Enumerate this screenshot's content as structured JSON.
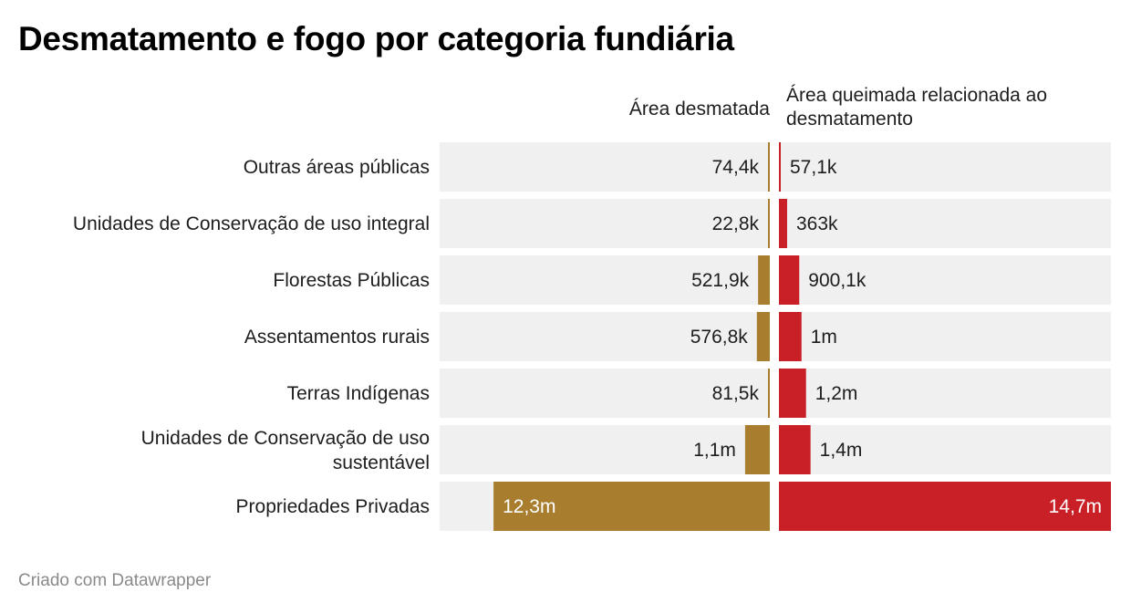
{
  "title": "Desmatamento e fogo por categoria fundiária",
  "footer": "Criado com Datawrapper",
  "colors": {
    "deforestation": "#a87e2e",
    "fire": "#c91f26",
    "row_background": "#f0f0f0",
    "text": "#1d1d1d"
  },
  "chart_data": {
    "type": "bar",
    "orientation": "horizontal",
    "layout": "split-bars",
    "categories": [
      [
        "Outras áreas públicas"
      ],
      [
        "Unidades de Conservação de uso integral"
      ],
      [
        "Florestas Públicas"
      ],
      [
        "Assentamentos rurais"
      ],
      [
        "Terras Indígenas"
      ],
      [
        "Unidades de Conservação de uso",
        "sustentável"
      ],
      [
        "Propriedades Privadas"
      ]
    ],
    "series": [
      {
        "name": "Área desmatada",
        "values": [
          74400,
          22800,
          521900,
          576800,
          81500,
          1100000,
          12300000
        ],
        "labels": [
          "74,4k",
          "22,8k",
          "521,9k",
          "576,8k",
          "81,5k",
          "1,1m",
          "12,3m"
        ]
      },
      {
        "name_lines": [
          "Área queimada relacionada ao",
          "desmatamento"
        ],
        "values": [
          57100,
          363000,
          900100,
          1000000,
          1200000,
          1400000,
          14700000
        ],
        "labels": [
          "57,1k",
          "363k",
          "900,1k",
          "1m",
          "1,2m",
          "1,4m",
          "14,7m"
        ]
      }
    ],
    "scale_max": 14700000
  }
}
